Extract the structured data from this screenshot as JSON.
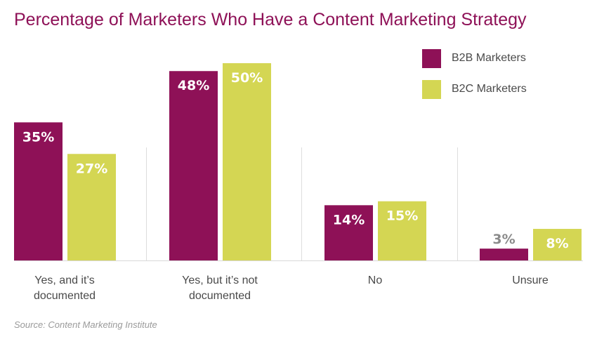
{
  "chart_data": {
    "type": "bar",
    "title": "Percentage of Marketers Who Have a Content Marketing Strategy",
    "categories": [
      [
        "Yes, and it’s",
        "documented"
      ],
      [
        "Yes, but it’s not",
        "documented"
      ],
      [
        "No"
      ],
      [
        "Unsure"
      ]
    ],
    "series": [
      {
        "name": "B2B Marketers",
        "color": "#8e1157",
        "values": [
          35,
          48,
          14,
          3
        ],
        "labels": [
          "35%",
          "48%",
          "14%",
          "3%"
        ]
      },
      {
        "name": "B2C Marketers",
        "color": "#d4d653",
        "values": [
          27,
          50,
          15,
          8
        ],
        "labels": [
          "27%",
          "50%",
          "15%",
          "8%"
        ]
      }
    ],
    "ylim": [
      0,
      55
    ],
    "grid": false,
    "legend_position": "top-right",
    "source": "Source: Content Marketing Institute"
  }
}
